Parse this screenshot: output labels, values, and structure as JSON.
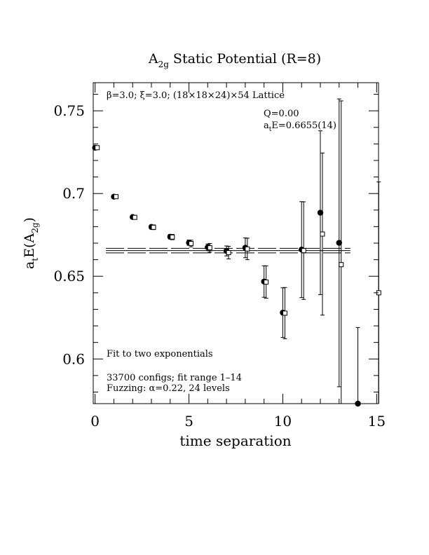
{
  "chart_data": {
    "type": "scatter",
    "title": "A2g Static Potential (R=8)",
    "title_parts": {
      "main": "A",
      "sub": "2g",
      "rest": " Static Potential (R=8)"
    },
    "xlabel": "time separation",
    "ylabel_parts": {
      "a": "a",
      "a_sub": "t",
      "e": "E(A",
      "e_sub": "2g",
      "close": ")"
    },
    "xlim": [
      -0.1,
      15.1
    ],
    "ylim": [
      0.573,
      0.767
    ],
    "x_ticks": [
      0,
      5,
      10,
      15
    ],
    "x_tick_labels": [
      "0",
      "5",
      "10",
      "15"
    ],
    "y_ticks": [
      0.6,
      0.65,
      0.7,
      0.75
    ],
    "y_tick_labels": [
      "0.6",
      "0.65",
      "0.7",
      "0.75"
    ],
    "grid": false,
    "annotations": {
      "lattice": "β=3.0; ξ=3.0; (18×18×24)×54 Lattice",
      "q": "Q=0.00",
      "energy_prefix": "a",
      "energy_sub": "t",
      "energy_rest": "E=0.6655(14)",
      "fit_label": "Fit to two exponentials",
      "configs": "33700 configs; fit range 1–14",
      "fuzzing": "Fuzzing: α=0.22, 24 levels"
    },
    "fit": {
      "value": 0.6655,
      "error": 0.0014,
      "x_range": [
        -0.1,
        13.6
      ]
    },
    "series": [
      {
        "name": "",
        "marker": "filled-circle",
        "points": [
          {
            "x": 0,
            "y": 0.7277,
            "err": 0.0008
          },
          {
            "x": 1,
            "y": 0.6981,
            "err": 0.0009
          },
          {
            "x": 2,
            "y": 0.6858,
            "err": 0.001
          },
          {
            "x": 3,
            "y": 0.6798,
            "err": 0.0012
          },
          {
            "x": 4,
            "y": 0.6739,
            "err": 0.0014
          },
          {
            "x": 5,
            "y": 0.6703,
            "err": 0.0016
          },
          {
            "x": 6,
            "y": 0.6675,
            "err": 0.002
          },
          {
            "x": 7,
            "y": 0.6653,
            "err": 0.003
          },
          {
            "x": 8,
            "y": 0.6672,
            "err": 0.006
          },
          {
            "x": 9,
            "y": 0.6468,
            "err": 0.0095
          },
          {
            "x": 10,
            "y": 0.628,
            "err": 0.015
          },
          {
            "x": 11,
            "y": 0.6661,
            "err": 0.029
          },
          {
            "x": 12,
            "y": 0.6884,
            "err": 0.0495
          },
          {
            "x": 13,
            "y": 0.6702,
            "err": 0.087
          },
          {
            "x": 14,
            "y": 0.573,
            "err": 0.046
          }
        ]
      },
      {
        "name": "",
        "marker": "open-square",
        "points": [
          {
            "x": 0,
            "y": 0.7277,
            "err": 0.001
          },
          {
            "x": 1,
            "y": 0.6981,
            "err": 0.0011
          },
          {
            "x": 2,
            "y": 0.6856,
            "err": 0.0012
          },
          {
            "x": 3,
            "y": 0.6796,
            "err": 0.0014
          },
          {
            "x": 4,
            "y": 0.6737,
            "err": 0.0016
          },
          {
            "x": 5,
            "y": 0.6698,
            "err": 0.002
          },
          {
            "x": 6,
            "y": 0.6672,
            "err": 0.0026
          },
          {
            "x": 7,
            "y": 0.6643,
            "err": 0.0038
          },
          {
            "x": 8,
            "y": 0.6665,
            "err": 0.0065
          },
          {
            "x": 9,
            "y": 0.6465,
            "err": 0.0098
          },
          {
            "x": 10,
            "y": 0.6277,
            "err": 0.0155
          },
          {
            "x": 11,
            "y": 0.6655,
            "err": 0.0295
          },
          {
            "x": 12,
            "y": 0.6755,
            "err": 0.049
          },
          {
            "x": 13,
            "y": 0.657,
            "err": 0.099
          },
          {
            "x": 15,
            "y": 0.64,
            "err": 0.067
          }
        ]
      }
    ]
  }
}
